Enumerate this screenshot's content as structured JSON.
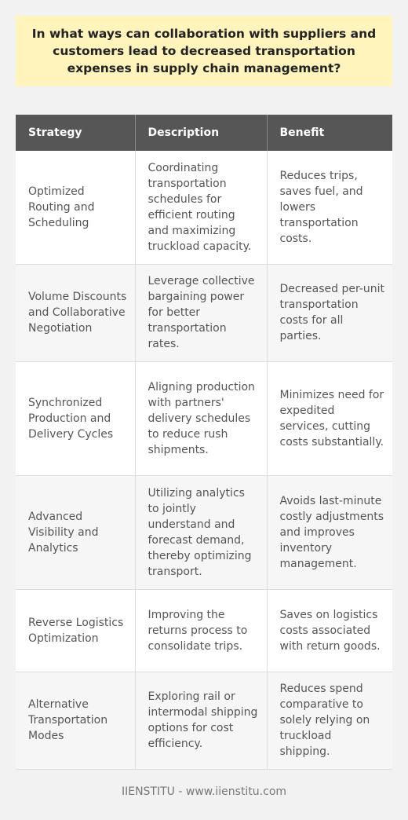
{
  "title": "In what ways can collaboration with suppliers and customers lead to decreased transportation expenses in supply chain management?",
  "table": {
    "headers": [
      "Strategy",
      "Description",
      "Benefit"
    ],
    "rows": [
      {
        "strategy": "Optimized Routing and Scheduling",
        "description": "Coordinating transportation schedules for efficient routing and maximizing truckload capacity.",
        "benefit": "Reduces trips, saves fuel, and lowers transportation costs."
      },
      {
        "strategy": "Volume Discounts and Collaborative Negotiation",
        "description": "Leverage collective bargaining power for better transportation rates.",
        "benefit": "Decreased per-unit transportation costs for all parties."
      },
      {
        "strategy": "Synchronized Production and Delivery Cycles",
        "description": "Aligning production with partners' delivery schedules to reduce rush shipments.",
        "benefit": "Minimizes need for expedited services, cutting costs substantially."
      },
      {
        "strategy": "Advanced Visibility and Analytics",
        "description": "Utilizing analytics to jointly understand and forecast demand, thereby optimizing transport.",
        "benefit": "Avoids last-minute costly adjustments and improves inventory management."
      },
      {
        "strategy": "Reverse Logistics Optimization",
        "description": "Improving the returns process to consolidate trips.",
        "benefit": "Saves on logistics costs associated with return goods."
      },
      {
        "strategy": "Alternative Transportation Modes",
        "description": "Exploring rail or intermodal shipping options for cost efficiency.",
        "benefit": "Reduces spend comparative to solely relying on truckload shipping."
      }
    ]
  },
  "footer": "IIENSTITU - www.iienstitu.com"
}
